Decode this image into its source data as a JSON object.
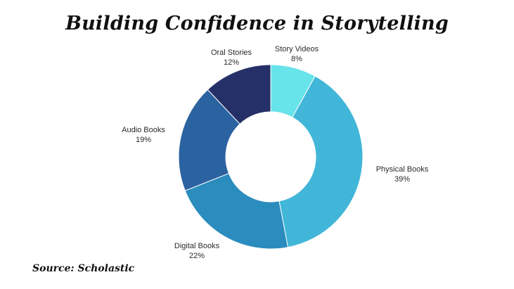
{
  "title": "Building Confidence in Storytelling",
  "source": "Source: Scholastic",
  "chart_data": {
    "type": "pie",
    "donut": true,
    "title": "Building Confidence in Storytelling",
    "slices": [
      {
        "label": "Story Videos",
        "value": 8,
        "value_label": "8%",
        "color": "#67e3ea"
      },
      {
        "label": "Physical Books",
        "value": 39,
        "value_label": "39%",
        "color": "#41b6d8"
      },
      {
        "label": "Digital Books",
        "value": 22,
        "value_label": "22%",
        "color": "#2b8cbe"
      },
      {
        "label": "Audio Books",
        "value": 19,
        "value_label": "19%",
        "color": "#2b62a0"
      },
      {
        "label": "Oral Stories",
        "value": 12,
        "value_label": "12%",
        "color": "#253068"
      }
    ],
    "legend": "none"
  }
}
